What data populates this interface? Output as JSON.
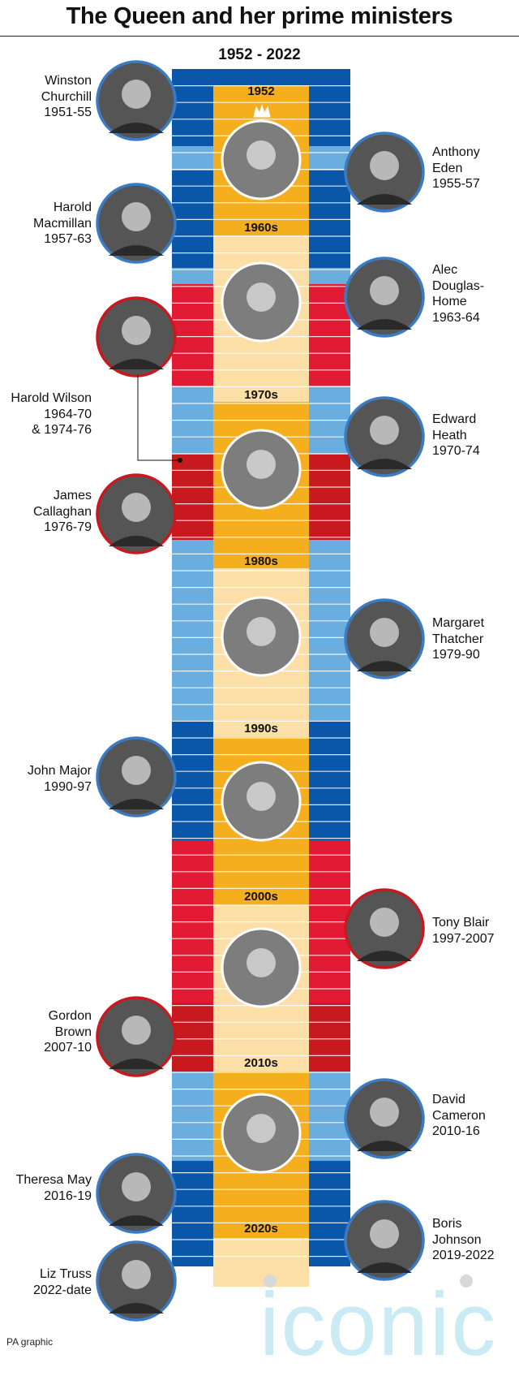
{
  "title": "The Queen and her prime ministers",
  "subtitle": "1952 - 2022",
  "footer": "PA graphic",
  "watermark": "iconic",
  "colors": {
    "conservative_dark": "#0a56a8",
    "conservative_light": "#6aaedf",
    "labour_dark": "#c8191e",
    "labour_mid": "#e21a33",
    "queen_band_dark": "#f5ae1d",
    "queen_band_light": "#fbdfa6"
  },
  "decades": [
    "1952",
    "1960s",
    "1970s",
    "1980s",
    "1990s",
    "2000s",
    "2010s",
    "2020s"
  ],
  "prime_ministers": [
    {
      "name": "Winston\nChurchill\n1951-55",
      "party": "conservative",
      "side": "left"
    },
    {
      "name": "Anthony\nEden\n1955-57",
      "party": "conservative",
      "side": "right"
    },
    {
      "name": "Harold\nMacmillan\n1957-63",
      "party": "conservative",
      "side": "left"
    },
    {
      "name": "Alec\nDouglas-\nHome\n1963-64",
      "party": "conservative",
      "side": "right"
    },
    {
      "name": "Harold Wilson\n1964-70\n& 1974-76",
      "party": "labour",
      "side": "left"
    },
    {
      "name": "Edward\nHeath\n1970-74",
      "party": "conservative",
      "side": "right"
    },
    {
      "name": "James\nCallaghan\n1976-79",
      "party": "labour",
      "side": "left"
    },
    {
      "name": "Margaret\nThatcher\n1979-90",
      "party": "conservative",
      "side": "right"
    },
    {
      "name": "John Major\n1990-97",
      "party": "conservative",
      "side": "left"
    },
    {
      "name": "Tony Blair\n1997-2007",
      "party": "labour",
      "side": "right"
    },
    {
      "name": "Gordon\nBrown\n2007-10",
      "party": "labour",
      "side": "left"
    },
    {
      "name": "David\nCameron\n2010-16",
      "party": "conservative",
      "side": "right"
    },
    {
      "name": "Theresa May\n2016-19",
      "party": "conservative",
      "side": "left"
    },
    {
      "name": "Boris\nJohnson\n2019-2022",
      "party": "conservative",
      "side": "right"
    },
    {
      "name": "Liz Truss\n2022-date",
      "party": "conservative",
      "side": "left"
    }
  ]
}
